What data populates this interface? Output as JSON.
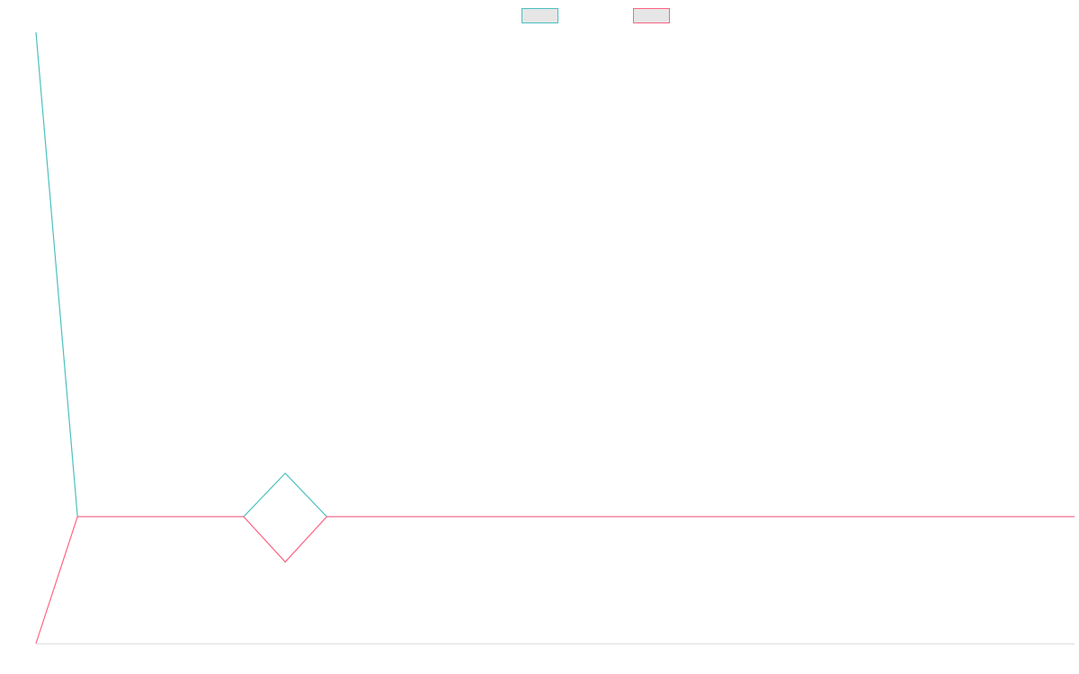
{
  "chart_data": {
    "type": "line",
    "title": "",
    "xlabel": "",
    "ylabel": "",
    "legend": {
      "position": "top-center",
      "entries": [
        {
          "label": "",
          "color": "#4bc0c0",
          "fill": "#e6e6e6"
        },
        {
          "label": "",
          "color": "#ff6384",
          "fill": "#e6e6e6"
        }
      ]
    },
    "grid": false,
    "x": [
      0,
      1,
      2,
      3,
      4,
      5,
      6,
      7,
      8,
      9,
      10,
      11,
      12,
      13,
      14,
      15,
      16,
      17,
      18,
      19,
      20,
      21,
      22,
      23,
      24,
      25
    ],
    "xlim": [
      0,
      25
    ],
    "ylim": [
      -1.4,
      5.35
    ],
    "series": [
      {
        "color": "#4bc0c0",
        "values": [
          5.35,
          0,
          0,
          0,
          0,
          0,
          0.48,
          0,
          0,
          0,
          0,
          0,
          0,
          0,
          0,
          0,
          0,
          0,
          0,
          0,
          0,
          0,
          0,
          0,
          0,
          0
        ]
      },
      {
        "color": "#ff6384",
        "values": [
          -1.4,
          0,
          0,
          0,
          0,
          0,
          -0.5,
          0,
          0,
          0,
          0,
          0,
          0,
          0,
          0,
          0,
          0,
          0,
          0,
          0,
          0,
          0,
          0,
          0,
          0,
          0
        ]
      }
    ]
  }
}
